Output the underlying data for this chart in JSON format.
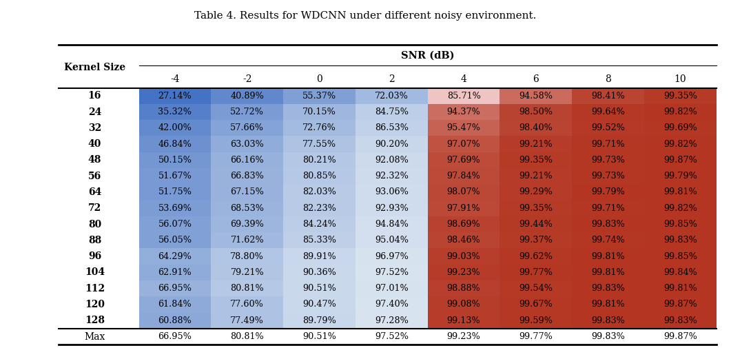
{
  "title": "Table 4. Results for WDCNN under different noisy environment.",
  "col_header": "SNR (dB)",
  "row_header": "Kernel Size",
  "snr_values": [
    "-4",
    "-2",
    "0",
    "2",
    "4",
    "6",
    "8",
    "10"
  ],
  "kernel_sizes": [
    "16",
    "24",
    "32",
    "40",
    "48",
    "56",
    "64",
    "72",
    "80",
    "88",
    "96",
    "104",
    "112",
    "120",
    "128",
    "Max"
  ],
  "data": [
    [
      27.14,
      40.89,
      55.37,
      72.03,
      85.71,
      94.58,
      98.41,
      99.35
    ],
    [
      35.32,
      52.72,
      70.15,
      84.75,
      94.37,
      98.5,
      99.64,
      99.82
    ],
    [
      42.0,
      57.66,
      72.76,
      86.53,
      95.47,
      98.4,
      99.52,
      99.69
    ],
    [
      46.84,
      63.03,
      77.55,
      90.2,
      97.07,
      99.21,
      99.71,
      99.82
    ],
    [
      50.15,
      66.16,
      80.21,
      92.08,
      97.69,
      99.35,
      99.73,
      99.87
    ],
    [
      51.67,
      66.83,
      80.85,
      92.32,
      97.84,
      99.21,
      99.73,
      99.79
    ],
    [
      51.75,
      67.15,
      82.03,
      93.06,
      98.07,
      99.29,
      99.79,
      99.81
    ],
    [
      53.69,
      68.53,
      82.23,
      92.93,
      97.91,
      99.35,
      99.71,
      99.82
    ],
    [
      56.07,
      69.39,
      84.24,
      94.84,
      98.69,
      99.44,
      99.83,
      99.85
    ],
    [
      56.05,
      71.62,
      85.33,
      95.04,
      98.46,
      99.37,
      99.74,
      99.83
    ],
    [
      64.29,
      78.8,
      89.91,
      96.97,
      99.03,
      99.62,
      99.81,
      99.85
    ],
    [
      62.91,
      79.21,
      90.36,
      97.52,
      99.23,
      99.77,
      99.81,
      99.84
    ],
    [
      66.95,
      80.81,
      90.51,
      97.01,
      98.88,
      99.54,
      99.83,
      99.81
    ],
    [
      61.84,
      77.6,
      90.47,
      97.4,
      99.08,
      99.67,
      99.81,
      99.87
    ],
    [
      60.88,
      77.49,
      89.79,
      97.28,
      99.13,
      99.59,
      99.83,
      99.83
    ],
    [
      66.95,
      80.81,
      90.51,
      97.52,
      99.23,
      99.77,
      99.83,
      99.87
    ]
  ],
  "text_data": [
    [
      "27.14%",
      "40.89%",
      "55.37%",
      "72.03%",
      "85.71%",
      "94.58%",
      "98.41%",
      "99.35%"
    ],
    [
      "35.32%",
      "52.72%",
      "70.15%",
      "84.75%",
      "94.37%",
      "98.50%",
      "99.64%",
      "99.82%"
    ],
    [
      "42.00%",
      "57.66%",
      "72.76%",
      "86.53%",
      "95.47%",
      "98.40%",
      "99.52%",
      "99.69%"
    ],
    [
      "46.84%",
      "63.03%",
      "77.55%",
      "90.20%",
      "97.07%",
      "99.21%",
      "99.71%",
      "99.82%"
    ],
    [
      "50.15%",
      "66.16%",
      "80.21%",
      "92.08%",
      "97.69%",
      "99.35%",
      "99.73%",
      "99.87%"
    ],
    [
      "51.67%",
      "66.83%",
      "80.85%",
      "92.32%",
      "97.84%",
      "99.21%",
      "99.73%",
      "99.79%"
    ],
    [
      "51.75%",
      "67.15%",
      "82.03%",
      "93.06%",
      "98.07%",
      "99.29%",
      "99.79%",
      "99.81%"
    ],
    [
      "53.69%",
      "68.53%",
      "82.23%",
      "92.93%",
      "97.91%",
      "99.35%",
      "99.71%",
      "99.82%"
    ],
    [
      "56.07%",
      "69.39%",
      "84.24%",
      "94.84%",
      "98.69%",
      "99.44%",
      "99.83%",
      "99.85%"
    ],
    [
      "56.05%",
      "71.62%",
      "85.33%",
      "95.04%",
      "98.46%",
      "99.37%",
      "99.74%",
      "99.83%"
    ],
    [
      "64.29%",
      "78.80%",
      "89.91%",
      "96.97%",
      "99.03%",
      "99.62%",
      "99.81%",
      "99.85%"
    ],
    [
      "62.91%",
      "79.21%",
      "90.36%",
      "97.52%",
      "99.23%",
      "99.77%",
      "99.81%",
      "99.84%"
    ],
    [
      "66.95%",
      "80.81%",
      "90.51%",
      "97.01%",
      "98.88%",
      "99.54%",
      "99.83%",
      "99.81%"
    ],
    [
      "61.84%",
      "77.60%",
      "90.47%",
      "97.40%",
      "99.08%",
      "99.67%",
      "99.81%",
      "99.87%"
    ],
    [
      "60.88%",
      "77.49%",
      "89.79%",
      "97.28%",
      "99.13%",
      "99.59%",
      "99.83%",
      "99.83%"
    ],
    [
      "66.95%",
      "80.81%",
      "90.51%",
      "97.52%",
      "99.23%",
      "99.77%",
      "99.83%",
      "99.87%"
    ]
  ],
  "blue_cols": [
    0,
    1,
    2,
    3
  ],
  "red_cols": [
    4,
    5,
    6,
    7
  ],
  "max_row_index": 15,
  "bg_color": "#ffffff",
  "cell_text_color": "#1a1a2e",
  "bold_rows": [
    "16",
    "24",
    "32",
    "40",
    "48",
    "56",
    "64",
    "72",
    "80",
    "88",
    "96",
    "104",
    "112",
    "120",
    "128"
  ],
  "blue_low": "#4472c4",
  "blue_high": "#dce6f1",
  "red_low": "#f4cccc",
  "red_high": "#cc0000"
}
